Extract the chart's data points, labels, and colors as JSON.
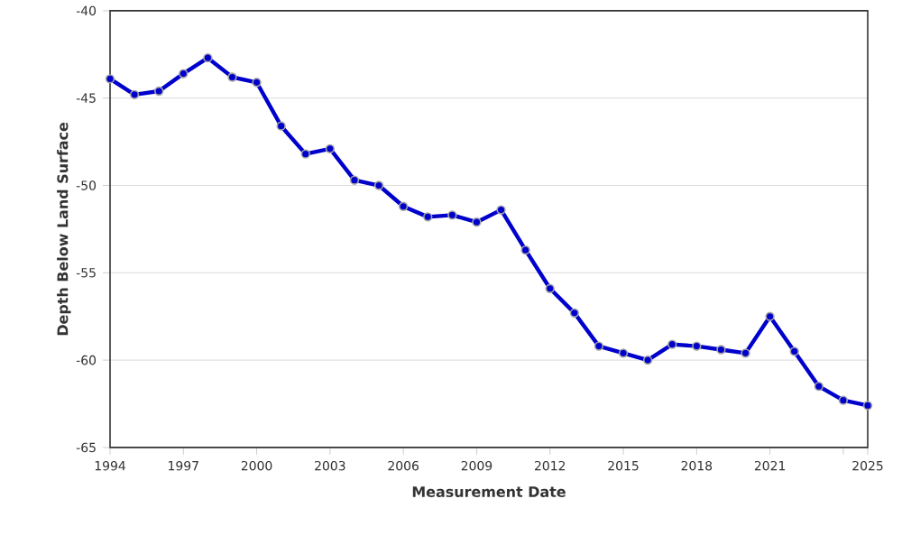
{
  "chart_data": {
    "type": "line",
    "xlabel": "Measurement Date",
    "ylabel": "Depth Below Land Surface",
    "x": [
      1994,
      1995,
      1996,
      1997,
      1998,
      1999,
      2000,
      2001,
      2002,
      2003,
      2004,
      2005,
      2006,
      2007,
      2008,
      2009,
      2010,
      2011,
      2012,
      2013,
      2014,
      2015,
      2016,
      2017,
      2018,
      2019,
      2020,
      2021,
      2022,
      2023,
      2024,
      2025
    ],
    "series": [
      {
        "color": "#0000cc",
        "values": [
          -43.9,
          -44.8,
          -44.6,
          -43.6,
          -42.7,
          -43.8,
          -44.1,
          -46.6,
          -48.2,
          -47.9,
          -49.7,
          -50.0,
          -51.2,
          -51.8,
          -51.7,
          -52.1,
          -51.4,
          -53.7,
          -55.9,
          -57.3,
          -59.2,
          -59.6,
          -60.0,
          -59.1,
          -59.2,
          -59.4,
          -59.6,
          -57.5,
          -59.5,
          -61.5,
          -62.3,
          -62.6
        ]
      }
    ],
    "xlim": [
      1994,
      2025
    ],
    "ylim": [
      -65,
      -40
    ],
    "xticks": [
      1994,
      1997,
      2000,
      2003,
      2006,
      2009,
      2012,
      2015,
      2018,
      2021,
      {
        "value": 2024,
        "label": null
      },
      2025
    ],
    "yticks": [
      -65,
      -60,
      -55,
      -50,
      -45,
      -40
    ],
    "grid": "y",
    "marker": "circle",
    "line_style": "solid"
  }
}
